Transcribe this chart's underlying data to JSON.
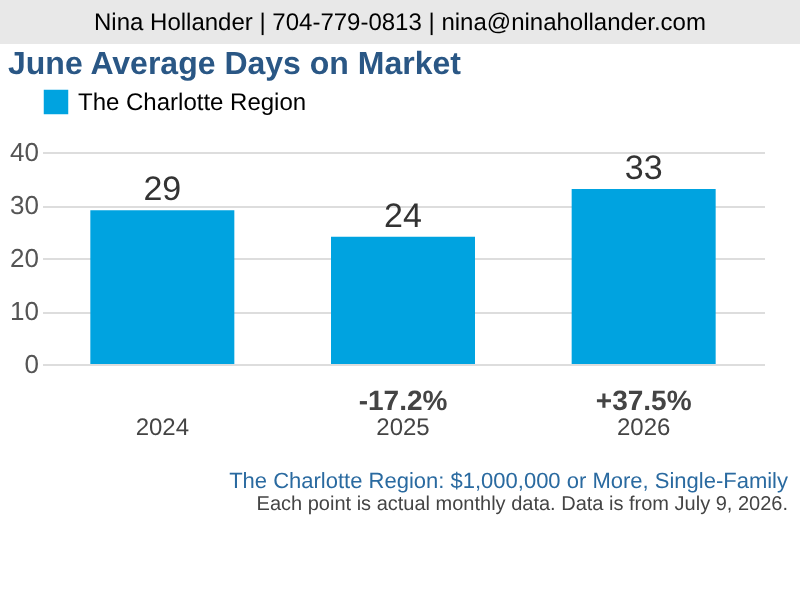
{
  "chart_data": {
    "type": "bar",
    "title": "June Average Days on Market",
    "subtitle": "The Charlotte Region: $1,000,000 or More, Single-Family",
    "annotations": [
      "Nina Hollander | 704-779-0813 | nina@ninahollander.com",
      "-17.2%",
      "+37.5%",
      "Each point is actual monthly data. Data is from July 9, 2026."
    ],
    "categories": [
      "2024",
      "2025",
      "2026"
    ],
    "series": [
      {
        "name": "The Charlotte Region",
        "color": "#00a3e0",
        "values": [
          29,
          24,
          33
        ]
      }
    ],
    "ylim": [
      0,
      40
    ],
    "yticks": [
      0,
      10,
      20,
      30,
      40
    ],
    "grid": "y",
    "legend": "top",
    "data_labels": true
  }
}
